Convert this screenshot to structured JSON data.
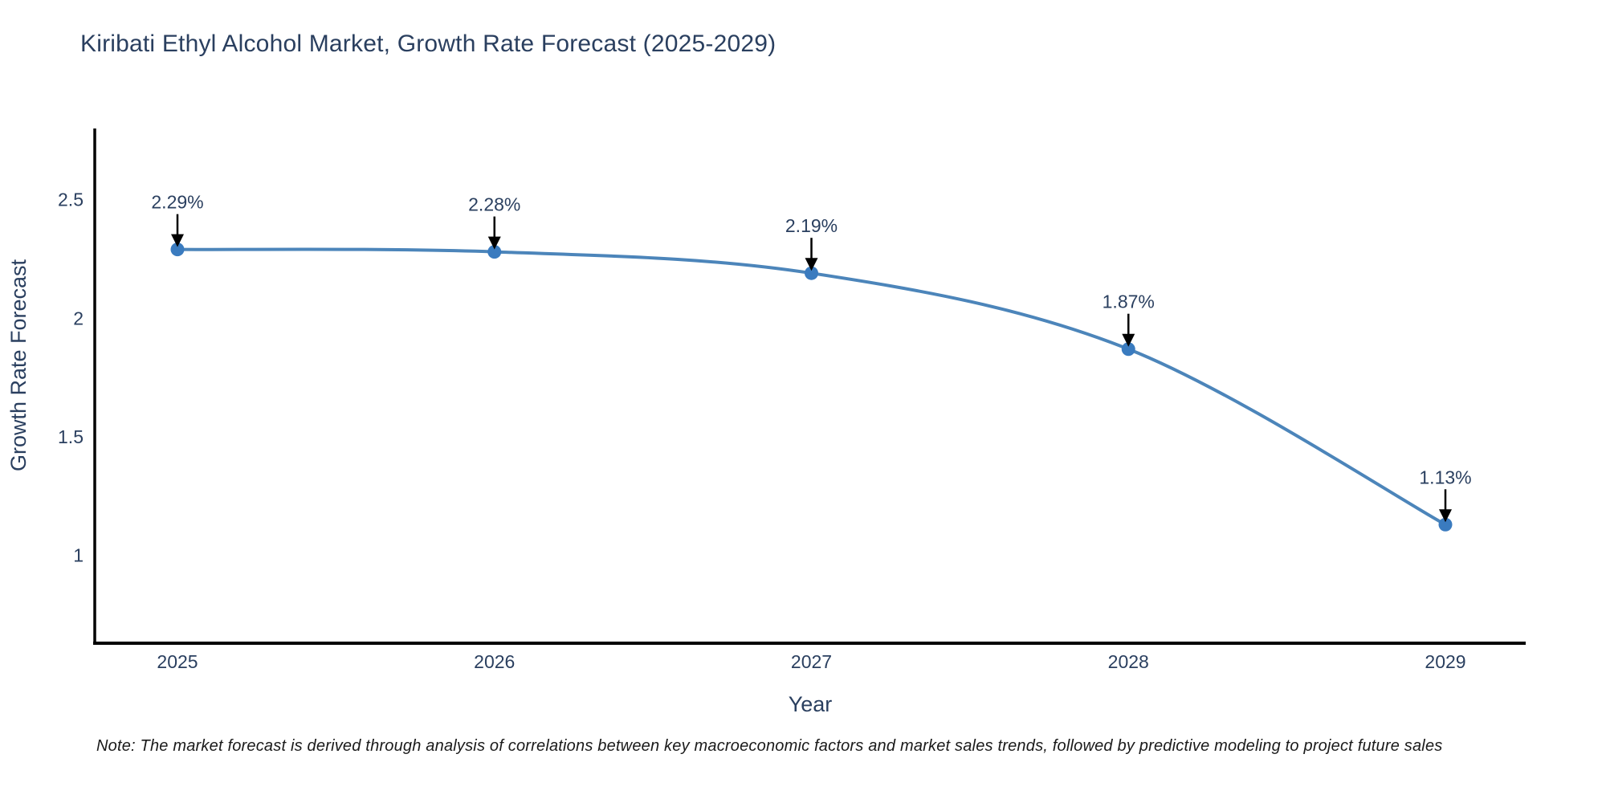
{
  "title": "Kiribati Ethyl Alcohol Market, Growth Rate Forecast (2025-2029)",
  "note": "Note: The market forecast is derived through analysis of correlations between key macroeconomic factors and market sales trends, followed by predictive modeling to project future sales",
  "colors": {
    "background": "#ffffff",
    "title_text": "#2a3f5f",
    "axis_line": "#000000",
    "tick_label": "#2a3f5f",
    "axis_title": "#2a3f5f",
    "line": "#4c85ba",
    "marker": "#3a7bbf",
    "annotation_text": "#2a3f5f",
    "arrow": "#000000",
    "note_text": "#1a1a1a"
  },
  "chart_data": {
    "type": "line",
    "title": "Kiribati Ethyl Alcohol Market, Growth Rate Forecast (2025-2029)",
    "categories": [
      "2025",
      "2026",
      "2027",
      "2028",
      "2029"
    ],
    "series": [
      {
        "name": "Growth Rate Forecast",
        "values": [
          2.29,
          2.28,
          2.19,
          1.87,
          1.13
        ]
      }
    ],
    "point_labels": [
      "2.29%",
      "2.28%",
      "2.19%",
      "1.87%",
      "1.13%"
    ],
    "xlabel": "Year",
    "ylabel": "Growth Rate Forecast",
    "yticks": [
      "2.5",
      "2",
      "1.5",
      "1"
    ],
    "ytick_values": [
      2.5,
      2,
      1.5,
      1
    ],
    "ylim": [
      0.63,
      2.8
    ],
    "line_shape": "spline",
    "grid": false,
    "legend_position": "none",
    "annotations": "arrow-down-to-point"
  }
}
